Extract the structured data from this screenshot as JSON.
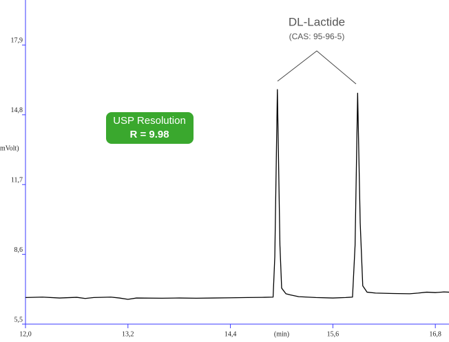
{
  "chart_data": {
    "type": "line",
    "annotation_title": "DL-Lactide",
    "annotation_subtitle": "(CAS: 95-96-5)",
    "badge_title": "USP Resolution",
    "badge_value": "R = 9.98",
    "y_label": "mVolt)",
    "x_label": "(min)",
    "color": "#000000",
    "axis_color": "#3a3aff",
    "x": [
      12.0,
      12.2,
      12.4,
      12.6,
      12.7,
      12.8,
      13.0,
      13.1,
      13.2,
      13.3,
      13.6,
      13.8,
      14.0,
      14.2,
      14.4,
      14.6,
      14.8,
      14.9,
      14.92,
      14.95,
      14.98,
      15.0,
      15.05,
      15.1,
      15.2,
      15.4,
      15.6,
      15.75,
      15.83,
      15.86,
      15.89,
      15.92,
      15.95,
      16.0,
      16.1,
      16.3,
      16.5,
      16.6,
      16.7,
      16.8,
      16.9,
      16.96
    ],
    "values": [
      6.68,
      6.7,
      6.66,
      6.69,
      6.64,
      6.68,
      6.7,
      6.66,
      6.6,
      6.66,
      6.65,
      6.66,
      6.65,
      6.66,
      6.67,
      6.68,
      6.69,
      6.7,
      8.5,
      15.92,
      9.0,
      7.1,
      6.85,
      6.8,
      6.72,
      6.68,
      6.66,
      6.68,
      6.7,
      9.0,
      15.76,
      10.0,
      7.2,
      6.92,
      6.88,
      6.86,
      6.85,
      6.88,
      6.92,
      6.9,
      6.93,
      6.92
    ],
    "xlim": [
      12.0,
      16.96
    ],
    "ylim": [
      5.5,
      19.9
    ],
    "xticks": [
      {
        "value": 12.0,
        "label": "12,0"
      },
      {
        "value": 13.2,
        "label": "13,2"
      },
      {
        "value": 14.4,
        "label": "14,4"
      },
      {
        "value": 15.6,
        "label": "15,6"
      },
      {
        "value": 16.8,
        "label": "16,8"
      }
    ],
    "yticks": [
      {
        "value": 5.5,
        "label": "5,5"
      },
      {
        "value": 8.6,
        "label": "8,6"
      },
      {
        "value": 11.7,
        "label": "11,7"
      },
      {
        "value": 14.8,
        "label": "14,8"
      },
      {
        "value": 17.9,
        "label": "17,9"
      }
    ]
  }
}
